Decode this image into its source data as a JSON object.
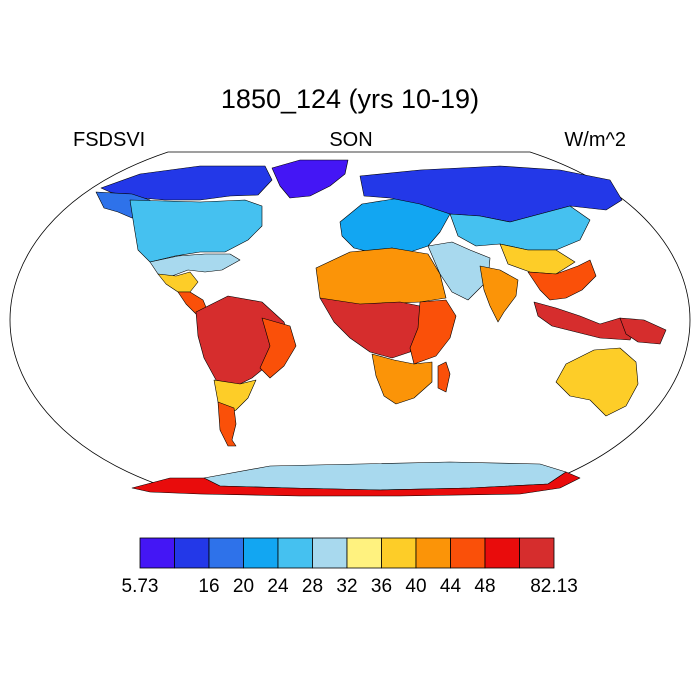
{
  "chart_data": {
    "type": "heatmap",
    "title": "1850_124 (yrs 10-19)",
    "left_label": "FSDSVI",
    "center_label": "SON",
    "right_label": "W/m^2",
    "projection": "robinson",
    "colorbar": {
      "orientation": "horizontal",
      "labels": [
        "5.73",
        "16",
        "20",
        "24",
        "28",
        "32",
        "36",
        "40",
        "44",
        "48",
        "82.13"
      ],
      "bins": [
        {
          "min": 5.73,
          "max": 12,
          "color": "#4416f5"
        },
        {
          "min": 12,
          "max": 16,
          "color": "#2338e8"
        },
        {
          "min": 16,
          "max": 20,
          "color": "#2e72ea"
        },
        {
          "min": 20,
          "max": 24,
          "color": "#12a6f2"
        },
        {
          "min": 24,
          "max": 28,
          "color": "#45c1f0"
        },
        {
          "min": 28,
          "max": 32,
          "color": "#a8d9ee"
        },
        {
          "min": 32,
          "max": 36,
          "color": "#fff27f"
        },
        {
          "min": 36,
          "max": 40,
          "color": "#fdcd28"
        },
        {
          "min": 40,
          "max": 44,
          "color": "#fb9408"
        },
        {
          "min": 44,
          "max": 48,
          "color": "#fa5009"
        },
        {
          "min": 48,
          "max": 52,
          "color": "#e90c0c"
        },
        {
          "min": 52,
          "max": 82.13,
          "color": "#d62d2d"
        }
      ]
    },
    "regions": [
      {
        "name": "Arctic Canada",
        "value": 13
      },
      {
        "name": "Greenland",
        "value": 6
      },
      {
        "name": "Alaska",
        "value": 18
      },
      {
        "name": "North America",
        "value": 26
      },
      {
        "name": "Southern USA",
        "value": 30
      },
      {
        "name": "Mexico",
        "value": 38
      },
      {
        "name": "Central America",
        "value": 45
      },
      {
        "name": "South America tropics",
        "value": 55
      },
      {
        "name": "Brazil east",
        "value": 46
      },
      {
        "name": "Southern Cone",
        "value": 38
      },
      {
        "name": "Patagonia",
        "value": 44
      },
      {
        "name": "Europe",
        "value": 21
      },
      {
        "name": "Siberia",
        "value": 14
      },
      {
        "name": "Central Asia",
        "value": 27
      },
      {
        "name": "Tibet",
        "value": 36
      },
      {
        "name": "Middle East",
        "value": 30
      },
      {
        "name": "Sahara",
        "value": 42
      },
      {
        "name": "Central Africa",
        "value": 54
      },
      {
        "name": "East Africa",
        "value": 47
      },
      {
        "name": "Southern Africa",
        "value": 41
      },
      {
        "name": "Madagascar",
        "value": 46
      },
      {
        "name": "India",
        "value": 40
      },
      {
        "name": "Southeast Asia",
        "value": 47
      },
      {
        "name": "Indonesia",
        "value": 58
      },
      {
        "name": "New Guinea",
        "value": 56
      },
      {
        "name": "Australia",
        "value": 38
      },
      {
        "name": "Antarctica interior",
        "value": 28
      },
      {
        "name": "Antarctica coast",
        "value": 50
      }
    ]
  }
}
